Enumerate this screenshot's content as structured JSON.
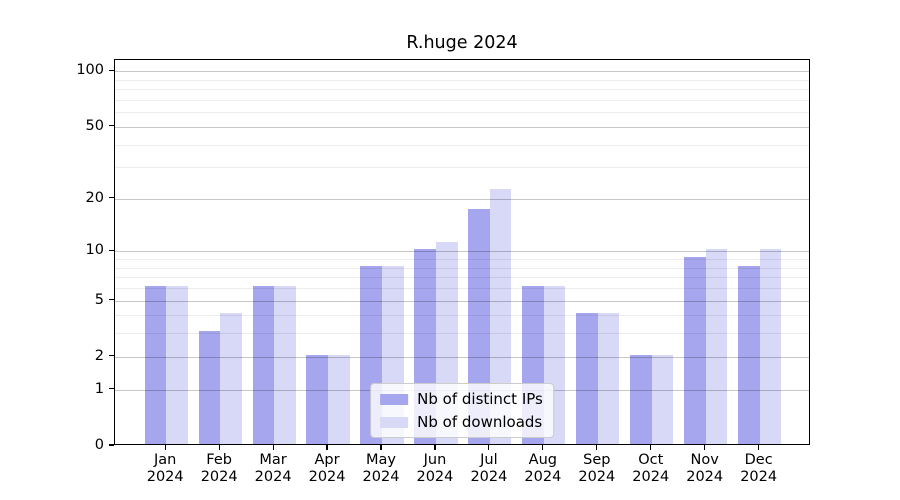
{
  "chart_data": {
    "type": "bar",
    "title": "R.huge 2024",
    "categories": [
      "Jan",
      "Feb",
      "Mar",
      "Apr",
      "May",
      "Jun",
      "Jul",
      "Aug",
      "Sep",
      "Oct",
      "Nov",
      "Dec"
    ],
    "x_year_suffix": "2024",
    "series": [
      {
        "name": "Nb of distinct IPs",
        "color": "#a6a6ee",
        "values": [
          6,
          3,
          6,
          2,
          8,
          10,
          17,
          6,
          4,
          2,
          9,
          8
        ]
      },
      {
        "name": "Nb of downloads",
        "color": "#d8d8f7",
        "values": [
          6,
          4,
          6,
          2,
          8,
          11,
          22,
          6,
          4,
          2,
          10,
          10
        ]
      }
    ],
    "yscale": "log1p",
    "ylim": [
      0,
      115
    ],
    "yticks_major": [
      0,
      1,
      2,
      5,
      10,
      20,
      50,
      100
    ],
    "yticks_minor": [
      3,
      4,
      6,
      7,
      8,
      9,
      30,
      40,
      60,
      70,
      80,
      90
    ],
    "grid": "major+minor, drawn over bars",
    "legend_position": "lower center",
    "xlabel": "",
    "ylabel": ""
  }
}
